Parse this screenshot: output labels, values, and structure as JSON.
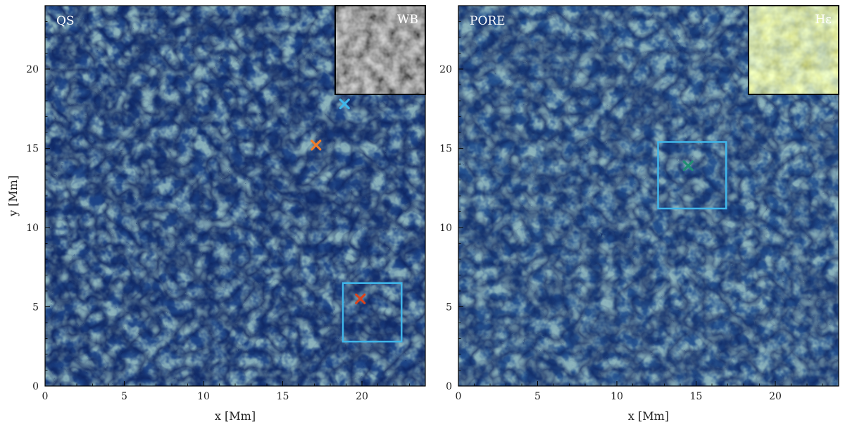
{
  "figure": {
    "y_axis_label": "y [Mm]",
    "x_axis_label": "x [Mm]",
    "x_ticks": [
      "0",
      "5",
      "10",
      "15",
      "20"
    ],
    "y_ticks": [
      "0",
      "5",
      "10",
      "15",
      "20"
    ],
    "colors": {
      "map_dark": "#0b1f5a",
      "map_mid": "#2a5a9a",
      "map_bright": "#9fc0bf",
      "map_brightest": "#fff6b0",
      "box": "#3fb6ea",
      "marker_blue": "#3fb6ea",
      "marker_orange": "#f07d2b",
      "marker_red": "#d9431e",
      "marker_green": "#1f8f73"
    }
  },
  "panels": [
    {
      "label": "QS",
      "inset_label": "WB",
      "inset_style": "grayscale",
      "markers": [
        {
          "name": "marker-blue",
          "x": 18.9,
          "y": 17.8,
          "color": "#3fb6ea"
        },
        {
          "name": "marker-orange",
          "x": 17.1,
          "y": 15.2,
          "color": "#f07d2b"
        },
        {
          "name": "marker-red",
          "x": 19.9,
          "y": 5.5,
          "color": "#d9431e"
        }
      ],
      "box": {
        "x0": 18.8,
        "y0": 2.8,
        "x1": 22.5,
        "y1": 6.5
      }
    },
    {
      "label": "PORE",
      "inset_label": "Hε",
      "inset_style": "color",
      "markers": [
        {
          "name": "marker-green",
          "x": 14.5,
          "y": 13.9,
          "color": "#1f8f73"
        }
      ],
      "box": {
        "x0": 12.6,
        "y0": 11.2,
        "x1": 16.9,
        "y1": 15.4
      }
    }
  ]
}
